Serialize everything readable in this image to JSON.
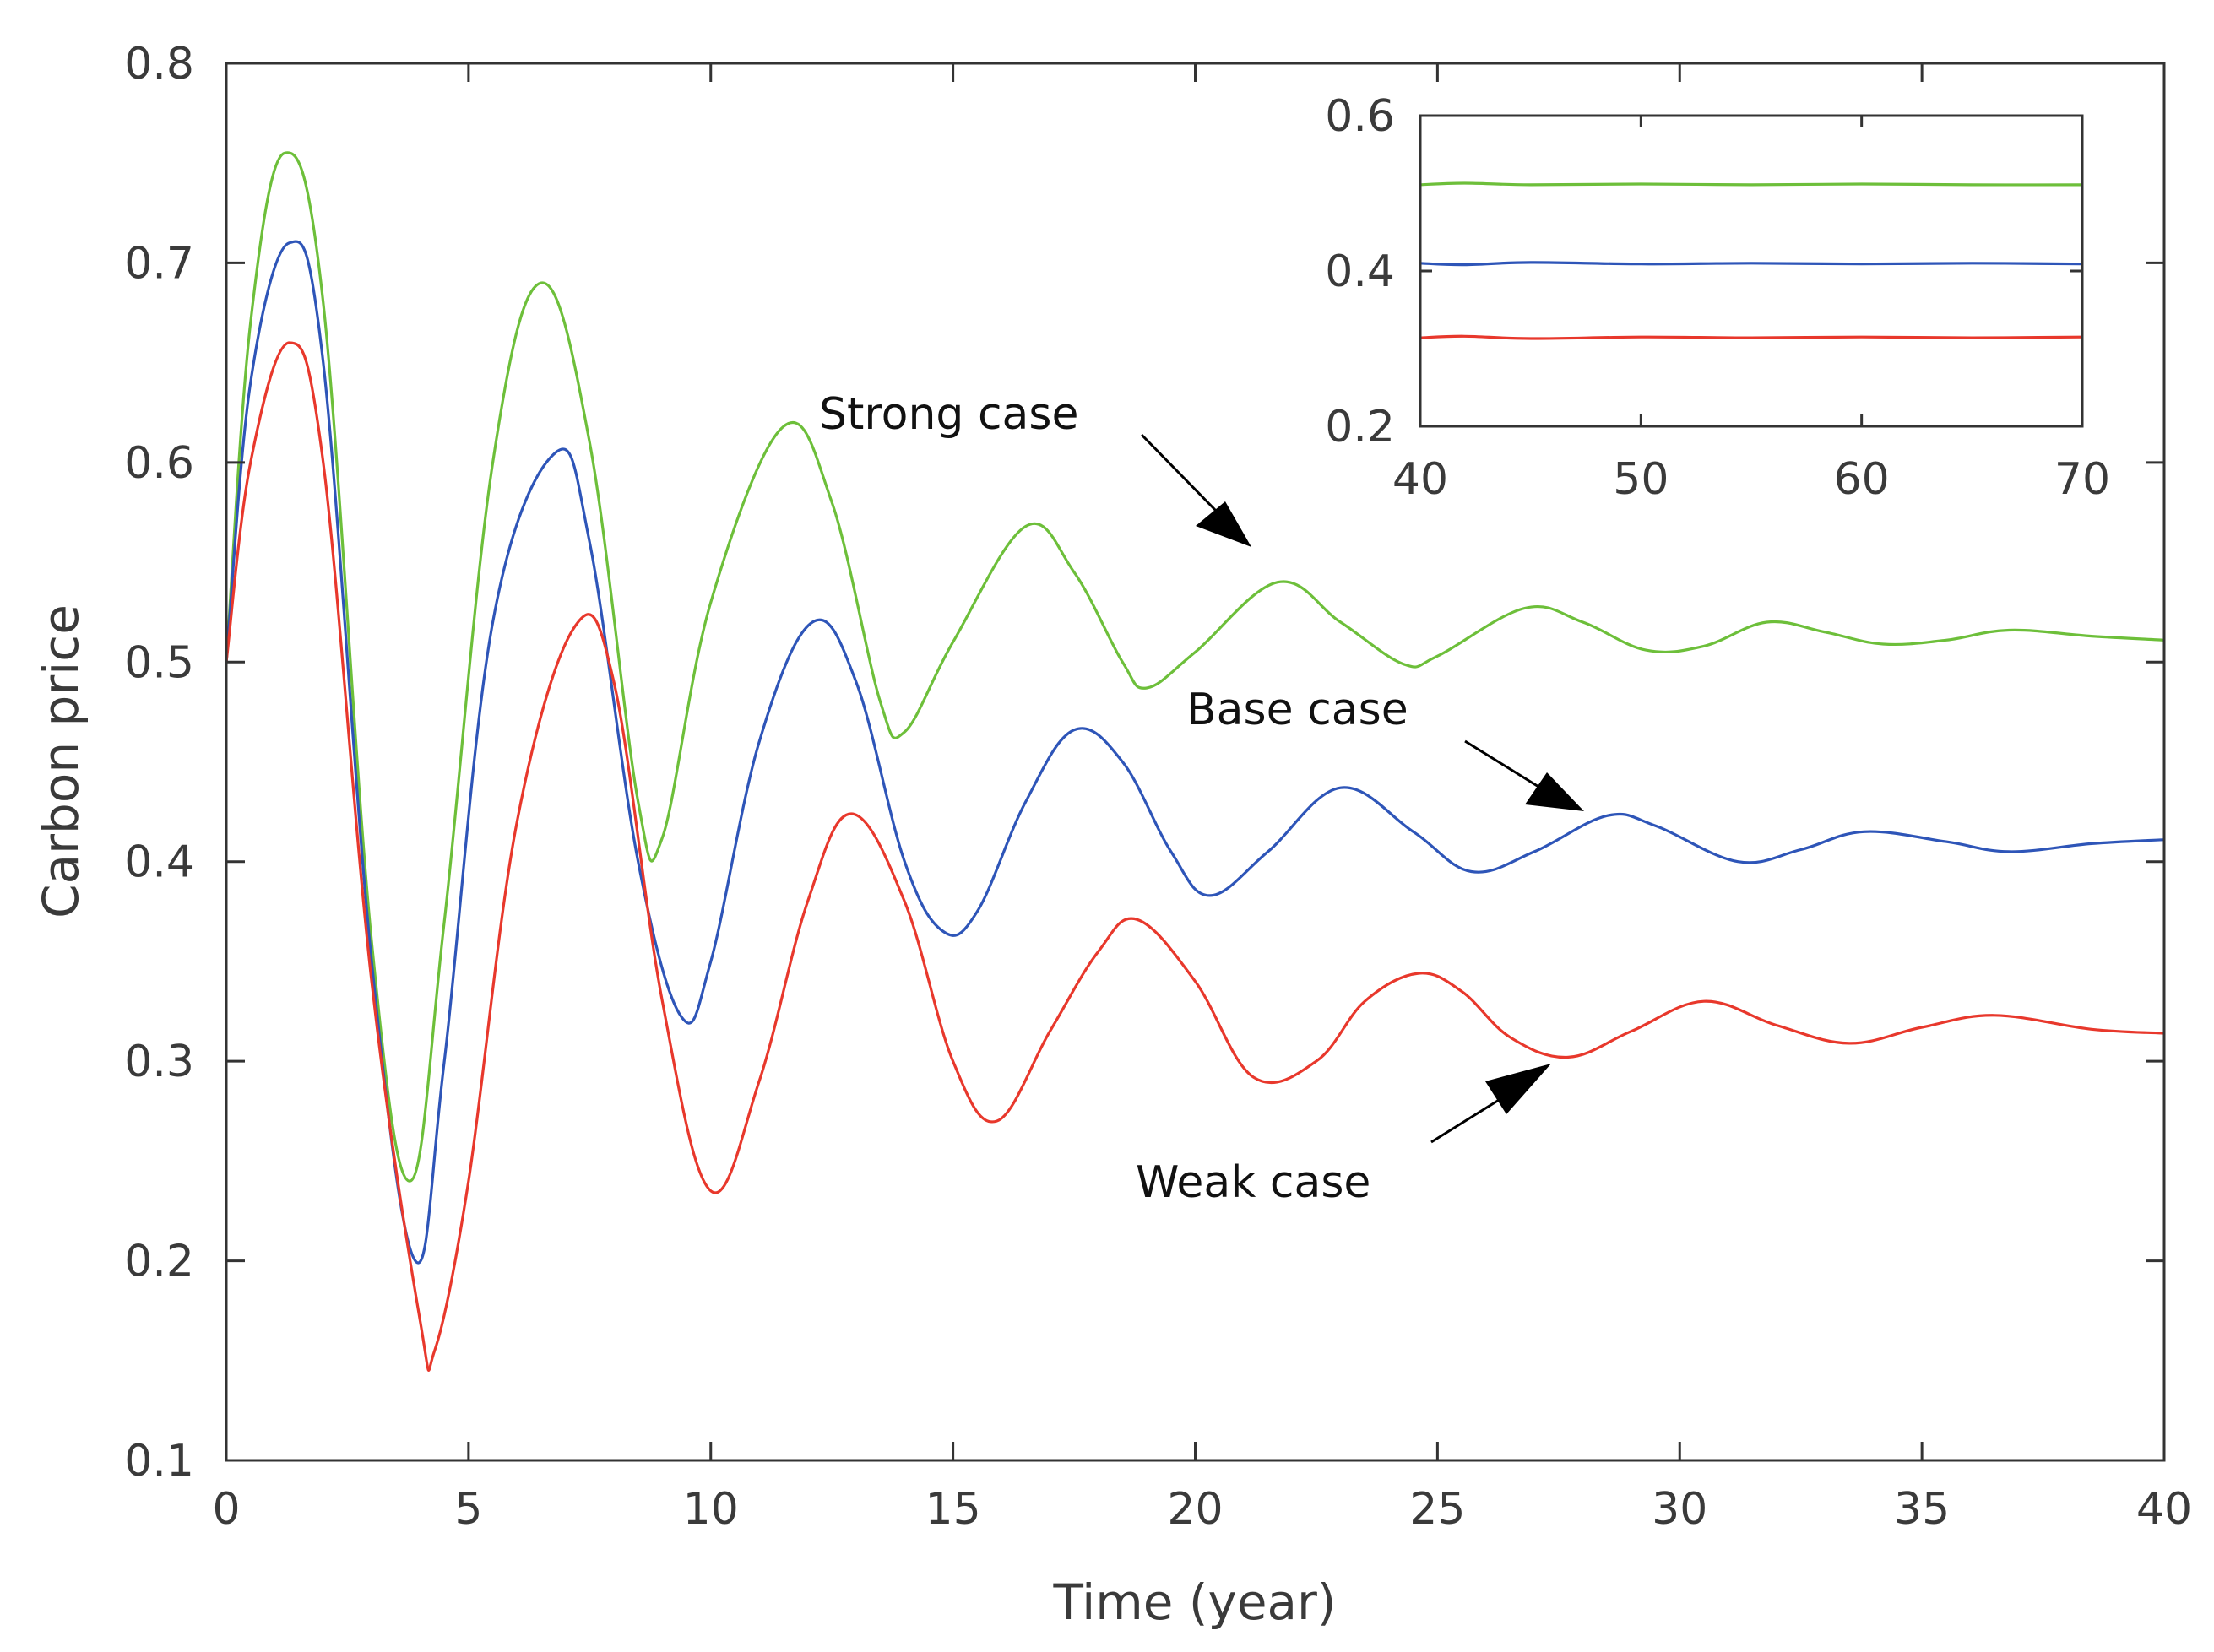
{
  "chart_data": [
    {
      "type": "line",
      "name": "main",
      "xlabel": "Time (year)",
      "ylabel": "Carbon price",
      "xlim": [
        0,
        40
      ],
      "ylim": [
        0.1,
        0.8
      ],
      "xticks": [
        0,
        5,
        10,
        15,
        20,
        25,
        30,
        35,
        40
      ],
      "yticks": [
        0.1,
        0.2,
        0.3,
        0.4,
        0.5,
        0.6,
        0.7,
        0.8
      ],
      "xtick_labels": [
        "0",
        "5",
        "10",
        "15",
        "20",
        "25",
        "30",
        "35",
        "40"
      ],
      "ytick_labels": [
        "0.1",
        "0.2",
        "0.3",
        "0.4",
        "0.5",
        "0.6",
        "0.7",
        "0.8"
      ],
      "series": [
        {
          "name": "Strong case",
          "color": "#6dbf3a",
          "x": [
            0,
            0.5,
            1.2,
            2.0,
            3.0,
            3.8,
            4.5,
            5.5,
            6.5,
            7.5,
            8.5,
            9.0,
            10.0,
            11.5,
            12.5,
            13.5,
            14.0,
            15.0,
            16.5,
            17.5,
            18.5,
            19.0,
            20.0,
            21.7,
            23.0,
            24.3,
            25.0,
            26.8,
            28.0,
            29.3,
            30.5,
            31.8,
            33.0,
            34.2,
            35.5,
            36.8,
            38.5,
            40.0
          ],
          "y": [
            0.5,
            0.67,
            0.755,
            0.68,
            0.36,
            0.24,
            0.37,
            0.6,
            0.69,
            0.61,
            0.43,
            0.412,
            0.53,
            0.618,
            0.58,
            0.48,
            0.465,
            0.51,
            0.568,
            0.545,
            0.5,
            0.487,
            0.505,
            0.54,
            0.52,
            0.499,
            0.503,
            0.527,
            0.52,
            0.506,
            0.508,
            0.52,
            0.515,
            0.509,
            0.511,
            0.516,
            0.513,
            0.511
          ]
        },
        {
          "name": "Base case",
          "color": "#2e55b8",
          "x": [
            0,
            0.5,
            1.3,
            2.0,
            3.0,
            3.9,
            4.5,
            5.5,
            6.8,
            7.5,
            8.5,
            9.4,
            10.0,
            11.0,
            12.1,
            13.0,
            14.0,
            14.8,
            15.5,
            16.5,
            17.5,
            18.5,
            19.5,
            20.3,
            21.5,
            23.0,
            24.5,
            25.7,
            27.0,
            28.5,
            29.5,
            31.2,
            32.5,
            33.8,
            35.5,
            36.8,
            38.5,
            40.0
          ],
          "y": [
            0.5,
            0.64,
            0.71,
            0.65,
            0.35,
            0.2,
            0.3,
            0.52,
            0.605,
            0.56,
            0.4,
            0.322,
            0.35,
            0.46,
            0.52,
            0.49,
            0.4,
            0.365,
            0.375,
            0.43,
            0.466,
            0.45,
            0.405,
            0.383,
            0.405,
            0.437,
            0.415,
            0.395,
            0.405,
            0.423,
            0.418,
            0.4,
            0.406,
            0.415,
            0.41,
            0.405,
            0.409,
            0.411
          ]
        },
        {
          "name": "Weak case",
          "color": "#e8382c",
          "x": [
            0,
            0.5,
            1.3,
            2.0,
            3.0,
            4.0,
            4.3,
            5.0,
            6.0,
            7.2,
            8.0,
            9.0,
            10.0,
            11.0,
            12.0,
            12.9,
            14.0,
            15.0,
            15.9,
            17.0,
            18.0,
            18.8,
            20.0,
            21.2,
            22.5,
            23.5,
            24.6,
            25.5,
            26.5,
            27.7,
            29.0,
            30.5,
            32.0,
            33.5,
            35.0,
            36.5,
            38.5,
            40.0
          ],
          "y": [
            0.5,
            0.6,
            0.66,
            0.6,
            0.34,
            0.17,
            0.155,
            0.24,
            0.42,
            0.518,
            0.49,
            0.33,
            0.235,
            0.29,
            0.38,
            0.424,
            0.38,
            0.3,
            0.27,
            0.315,
            0.355,
            0.371,
            0.34,
            0.292,
            0.3,
            0.33,
            0.344,
            0.335,
            0.312,
            0.302,
            0.315,
            0.33,
            0.318,
            0.309,
            0.317,
            0.323,
            0.316,
            0.314
          ]
        }
      ]
    },
    {
      "type": "line",
      "name": "inset",
      "xlim": [
        40,
        70
      ],
      "ylim": [
        0.2,
        0.6
      ],
      "xticks": [
        40,
        50,
        60,
        70
      ],
      "yticks": [
        0.2,
        0.4,
        0.6
      ],
      "xtick_labels": [
        "40",
        "50",
        "60",
        "70"
      ],
      "ytick_labels": [
        "0.2",
        "0.4",
        "0.6"
      ],
      "series": [
        {
          "name": "Strong case",
          "color": "#6dbf3a",
          "x": [
            40,
            42,
            45,
            50,
            55,
            60,
            65,
            70
          ],
          "y": [
            0.511,
            0.513,
            0.511,
            0.512,
            0.511,
            0.512,
            0.511,
            0.511
          ]
        },
        {
          "name": "Base case",
          "color": "#2e55b8",
          "x": [
            40,
            42,
            45,
            50,
            55,
            60,
            65,
            70
          ],
          "y": [
            0.41,
            0.408,
            0.411,
            0.409,
            0.41,
            0.409,
            0.41,
            0.409
          ]
        },
        {
          "name": "Weak case",
          "color": "#e8382c",
          "x": [
            40,
            42,
            45,
            50,
            55,
            60,
            65,
            70
          ],
          "y": [
            0.314,
            0.316,
            0.313,
            0.315,
            0.314,
            0.315,
            0.314,
            0.315
          ]
        }
      ]
    }
  ],
  "annotations": [
    {
      "text": "Strong case",
      "x": 21.7,
      "y": 0.54
    },
    {
      "text": "Base case",
      "x": 28.5,
      "y": 0.423
    },
    {
      "text": "Weak case",
      "x": 27.7,
      "y": 0.302
    }
  ]
}
